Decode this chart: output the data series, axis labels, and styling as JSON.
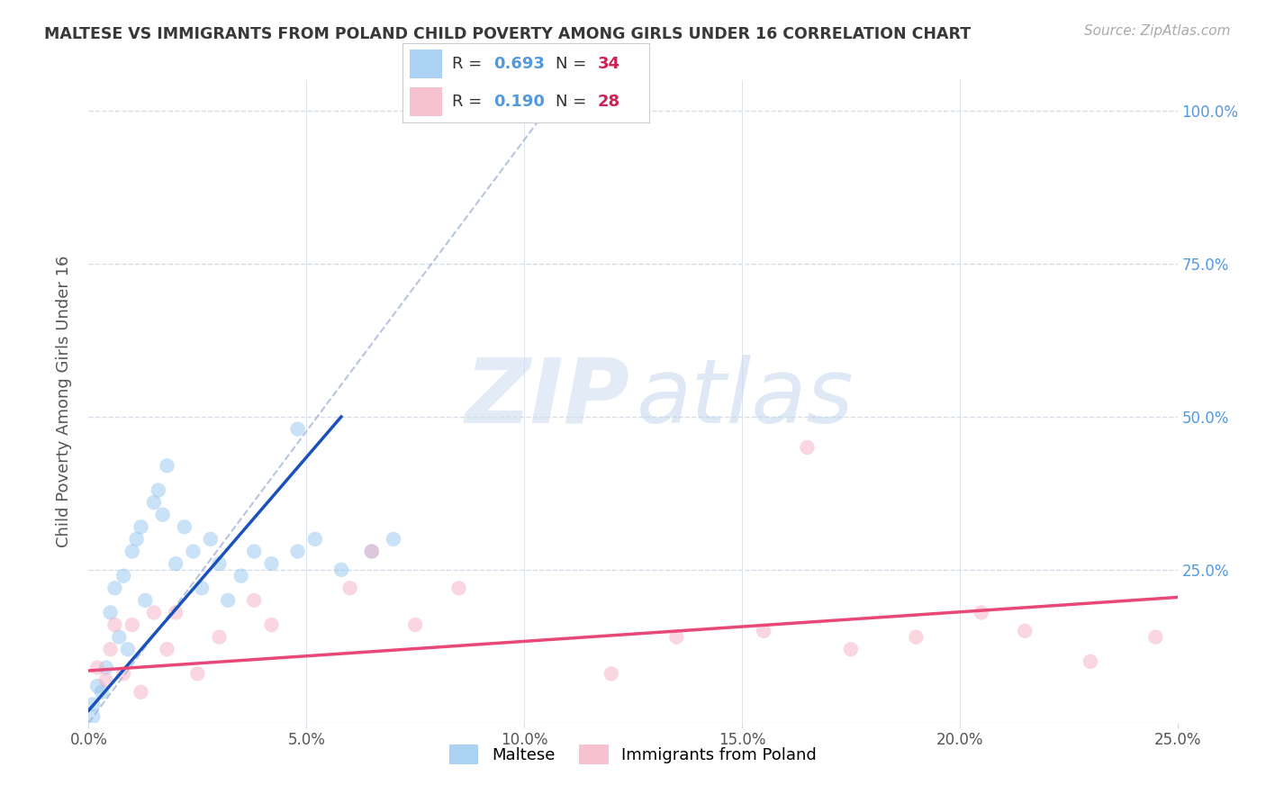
{
  "title": "MALTESE VS IMMIGRANTS FROM POLAND CHILD POVERTY AMONG GIRLS UNDER 16 CORRELATION CHART",
  "source": "Source: ZipAtlas.com",
  "ylabel": "Child Poverty Among Girls Under 16",
  "xlim": [
    0.0,
    0.25
  ],
  "ylim": [
    0.0,
    1.05
  ],
  "yticks": [
    0.0,
    0.25,
    0.5,
    0.75,
    1.0
  ],
  "ytick_labels_right": [
    "",
    "25.0%",
    "50.0%",
    "75.0%",
    "100.0%"
  ],
  "xticks": [
    0.0,
    0.05,
    0.1,
    0.15,
    0.2,
    0.25
  ],
  "xtick_labels": [
    "0.0%",
    "5.0%",
    "10.0%",
    "15.0%",
    "20.0%",
    "25.0%"
  ],
  "blue_scatter_x": [
    0.001,
    0.002,
    0.003,
    0.004,
    0.005,
    0.006,
    0.007,
    0.008,
    0.009,
    0.01,
    0.011,
    0.012,
    0.013,
    0.015,
    0.016,
    0.017,
    0.018,
    0.02,
    0.022,
    0.024,
    0.026,
    0.028,
    0.03,
    0.032,
    0.035,
    0.038,
    0.042,
    0.048,
    0.052,
    0.058,
    0.065,
    0.07,
    0.048,
    0.001
  ],
  "blue_scatter_y": [
    0.03,
    0.06,
    0.05,
    0.09,
    0.18,
    0.22,
    0.14,
    0.24,
    0.12,
    0.28,
    0.3,
    0.32,
    0.2,
    0.36,
    0.38,
    0.34,
    0.42,
    0.26,
    0.32,
    0.28,
    0.22,
    0.3,
    0.26,
    0.2,
    0.24,
    0.28,
    0.26,
    0.28,
    0.3,
    0.25,
    0.28,
    0.3,
    0.48,
    0.01
  ],
  "pink_scatter_x": [
    0.002,
    0.004,
    0.005,
    0.006,
    0.008,
    0.01,
    0.012,
    0.015,
    0.018,
    0.02,
    0.025,
    0.03,
    0.038,
    0.042,
    0.06,
    0.065,
    0.075,
    0.085,
    0.12,
    0.135,
    0.155,
    0.165,
    0.175,
    0.19,
    0.205,
    0.215,
    0.23,
    0.245
  ],
  "pink_scatter_y": [
    0.09,
    0.07,
    0.12,
    0.16,
    0.08,
    0.16,
    0.05,
    0.18,
    0.12,
    0.18,
    0.08,
    0.14,
    0.2,
    0.16,
    0.22,
    0.28,
    0.16,
    0.22,
    0.08,
    0.14,
    0.15,
    0.45,
    0.12,
    0.14,
    0.18,
    0.15,
    0.1,
    0.14
  ],
  "blue_line_x": [
    0.0,
    0.058
  ],
  "blue_line_y": [
    0.02,
    0.5
  ],
  "pink_line_x": [
    0.0,
    0.25
  ],
  "pink_line_y": [
    0.085,
    0.205
  ],
  "diag_line_x": [
    0.0,
    0.105
  ],
  "diag_line_y": [
    0.0,
    1.0
  ],
  "dot_size": 140,
  "dot_alpha": 0.45,
  "blue_color": "#88bfee",
  "pink_color": "#f5a8bc",
  "blue_line_color": "#1a52b8",
  "pink_line_color": "#e84878",
  "diag_color": "#aabbd8",
  "grid_color": "#d5dde8",
  "background_color": "#ffffff",
  "title_color": "#383838",
  "right_tick_color": "#5599dd",
  "legend_r_color": "#5599dd",
  "legend_n_color": "#cc2255"
}
